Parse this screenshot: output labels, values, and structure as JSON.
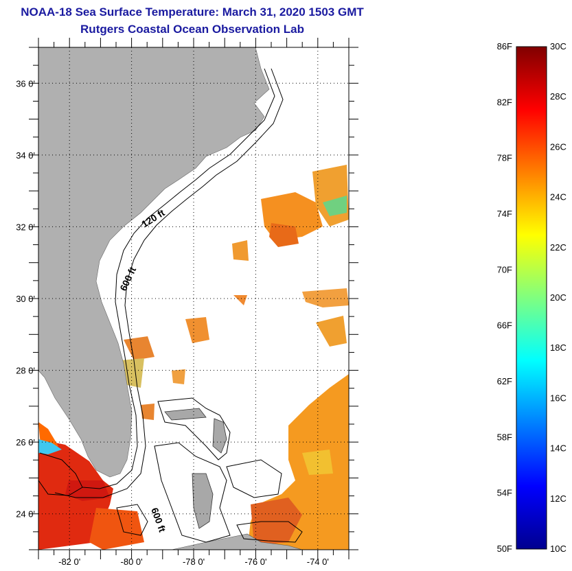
{
  "title": {
    "line1": "NOAA-18 Sea Surface Temperature:  March 31, 2020 1503 GMT",
    "line2": "Rutgers Coastal Ocean Observation Lab"
  },
  "map": {
    "lon_range": [
      -83,
      -73
    ],
    "lat_range": [
      23,
      37
    ],
    "lat_ticks": [
      {
        "value": 24,
        "label": "24 0'"
      },
      {
        "value": 26,
        "label": "26 0'"
      },
      {
        "value": 28,
        "label": "28 0'"
      },
      {
        "value": 30,
        "label": "30 0'"
      },
      {
        "value": 32,
        "label": "32 0'"
      },
      {
        "value": 34,
        "label": "34 0'"
      },
      {
        "value": 36,
        "label": "36 0'"
      }
    ],
    "lon_ticks": [
      {
        "value": -82,
        "label": "-82 0'"
      },
      {
        "value": -80,
        "label": "-80 0'"
      },
      {
        "value": -78,
        "label": "-78 0'"
      },
      {
        "value": -76,
        "label": "-76 0'"
      },
      {
        "value": -74,
        "label": "-74 0'"
      }
    ],
    "contour_labels": {
      "c120": "120 ft",
      "c600a": "600 ft",
      "c600b": "600 ft"
    },
    "land_color": "#b0b0b0",
    "grid": "dotted"
  },
  "colorbar": {
    "range_f": [
      50,
      86
    ],
    "range_c": [
      10,
      30
    ],
    "f_labels": [
      "86F",
      "82F",
      "78F",
      "74F",
      "70F",
      "66F",
      "62F",
      "58F",
      "54F",
      "50F"
    ],
    "c_labels": [
      "30C",
      "28C",
      "26C",
      "24C",
      "22C",
      "20C",
      "18C",
      "16C",
      "14C",
      "12C",
      "10C"
    ],
    "colormap": "jet"
  }
}
